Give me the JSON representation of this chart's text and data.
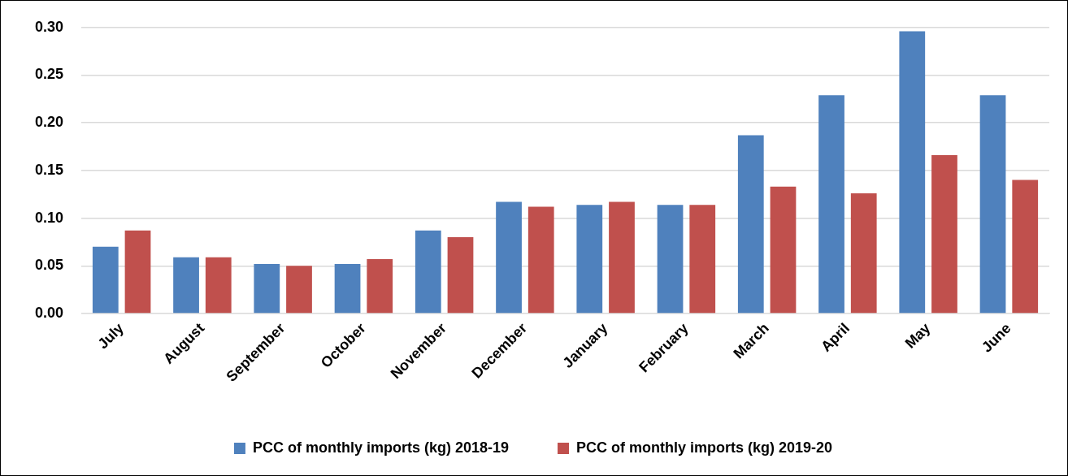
{
  "chart_data": {
    "type": "bar",
    "categories": [
      "July",
      "August",
      "September",
      "October",
      "November",
      "December",
      "January",
      "February",
      "March",
      "April",
      "May",
      "June"
    ],
    "series": [
      {
        "name": "PCC of monthly imports (kg) 2018-19",
        "color": "#4f81bd",
        "values": [
          0.07,
          0.059,
          0.052,
          0.052,
          0.087,
          0.117,
          0.114,
          0.114,
          0.187,
          0.229,
          0.296,
          0.229
        ]
      },
      {
        "name": "PCC of monthly imports (kg) 2019-20",
        "color": "#c0504d",
        "values": [
          0.087,
          0.059,
          0.05,
          0.057,
          0.08,
          0.112,
          0.117,
          0.114,
          0.133,
          0.126,
          0.166,
          0.14
        ]
      }
    ],
    "ylim": [
      0,
      0.3
    ],
    "yticks": [
      {
        "value": 0,
        "label": "0.00"
      },
      {
        "value": 0.05,
        "label": "0.05"
      },
      {
        "value": 0.1,
        "label": "0.10"
      },
      {
        "value": 0.15,
        "label": "0.15"
      },
      {
        "value": 0.2,
        "label": "0.20"
      },
      {
        "value": 0.25,
        "label": "0.25"
      },
      {
        "value": 0.3,
        "label": "0.30"
      }
    ],
    "grid": "y",
    "legend": "bottom"
  }
}
